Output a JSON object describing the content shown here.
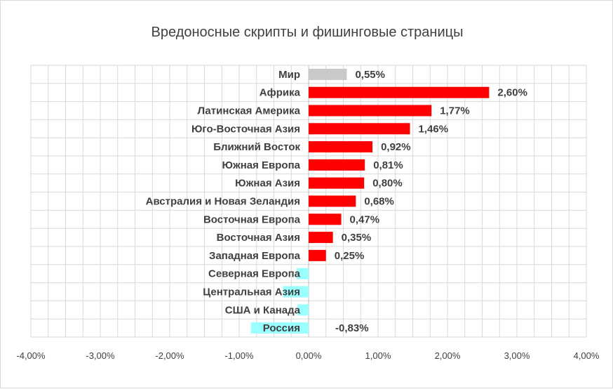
{
  "chart_data": {
    "type": "bar",
    "orientation": "horizontal",
    "title": "Вредоносные скрипты и фишинговые страницы",
    "xlim": [
      -0.04,
      0.04
    ],
    "xtick_values": [
      -0.04,
      -0.03,
      -0.02,
      -0.01,
      0,
      0.01,
      0.02,
      0.03,
      0.04
    ],
    "xtick_labels": [
      "-4,00%",
      "-3,00%",
      "-2,00%",
      "-1,00%",
      "0,00%",
      "1,00%",
      "2,00%",
      "3,00%",
      "4,00%"
    ],
    "grid": true,
    "categories": [
      "Мир",
      "Африка",
      "Латинская Америка",
      "Юго-Восточная Азия",
      "Ближний Восток",
      "Южная Европа",
      "Южная Азия",
      "Австралия и Новая Зеландия",
      "Восточная Европа",
      "Восточная Азия",
      "Западная Европа",
      "Северная Европа",
      "Центральная Азия",
      "США и Канада",
      "Россия"
    ],
    "values": [
      0.0055,
      0.026,
      0.0177,
      0.0146,
      0.0092,
      0.0081,
      0.008,
      0.0068,
      0.0047,
      0.0035,
      0.0025,
      -0.0017,
      -0.0037,
      -0.0016,
      -0.0083
    ],
    "data_labels": [
      "0,55%",
      "2,60%",
      "1,77%",
      "1,46%",
      "0,92%",
      "0,81%",
      "0,80%",
      "0,68%",
      "0,47%",
      "0,35%",
      "0,25%",
      "",
      "",
      "",
      "-0,83%"
    ],
    "colors": {
      "world": "#c9c9c9",
      "positive": "#ff0000",
      "negative": "#99ffff",
      "grid": "#d9d9d9",
      "text": "#404040"
    }
  }
}
